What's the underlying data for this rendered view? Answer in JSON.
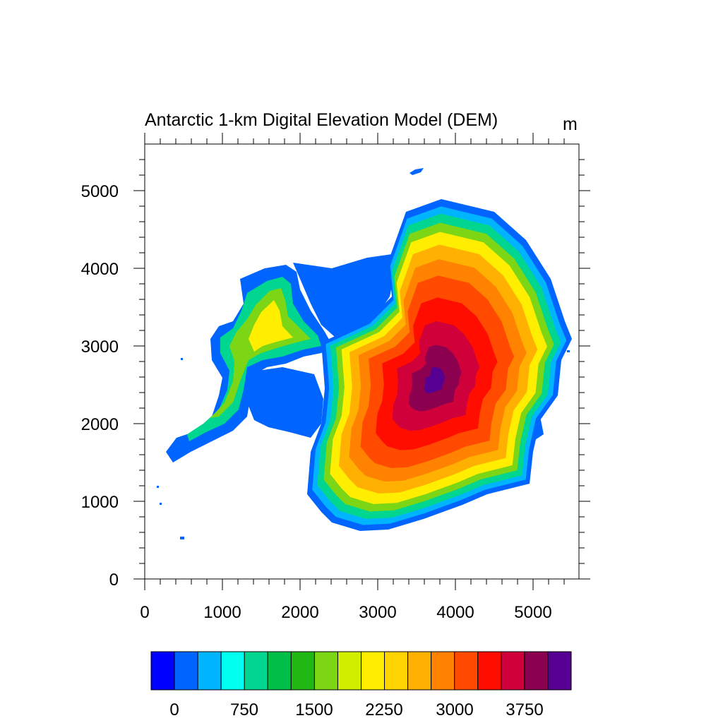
{
  "title": "Antarctic 1-km Digital Elevation Model (DEM)",
  "units": "m",
  "axes": {
    "x_ticks": [
      "0",
      "1000",
      "2000",
      "3000",
      "4000",
      "5000"
    ],
    "y_ticks": [
      "0",
      "1000",
      "2000",
      "3000",
      "4000",
      "5000"
    ],
    "x_range": [
      0,
      5600
    ],
    "y_range": [
      0,
      5600
    ]
  },
  "colorbar": {
    "labels": [
      "0",
      "750",
      "1500",
      "2250",
      "3000",
      "3750"
    ],
    "colors": [
      "#0000ff",
      "#0064ff",
      "#00b4ff",
      "#00ffee",
      "#00d68f",
      "#00bf48",
      "#22b814",
      "#7cd615",
      "#d2ee00",
      "#ffee00",
      "#ffd400",
      "#ffb000",
      "#ff8200",
      "#ff4a00",
      "#ff0e00",
      "#d0003a",
      "#8c0050",
      "#550090"
    ]
  },
  "map": {
    "levels": [
      {
        "color": "#0064ff",
        "scale": 1.0
      },
      {
        "color": "#00b4ff",
        "scale": 0.96
      },
      {
        "color": "#00d68f",
        "scale": 0.92
      },
      {
        "color": "#7cd615",
        "scale": 0.87
      },
      {
        "color": "#ffee00",
        "scale": 0.82
      },
      {
        "color": "#ffb000",
        "scale": 0.75
      },
      {
        "color": "#ff8200",
        "scale": 0.67
      },
      {
        "color": "#ff4a00",
        "scale": 0.58
      },
      {
        "color": "#ff0e00",
        "scale": 0.46
      },
      {
        "color": "#d0003a",
        "scale": 0.33
      },
      {
        "color": "#8c0050",
        "scale": 0.2
      },
      {
        "color": "#550090",
        "scale": 0.08
      }
    ]
  }
}
